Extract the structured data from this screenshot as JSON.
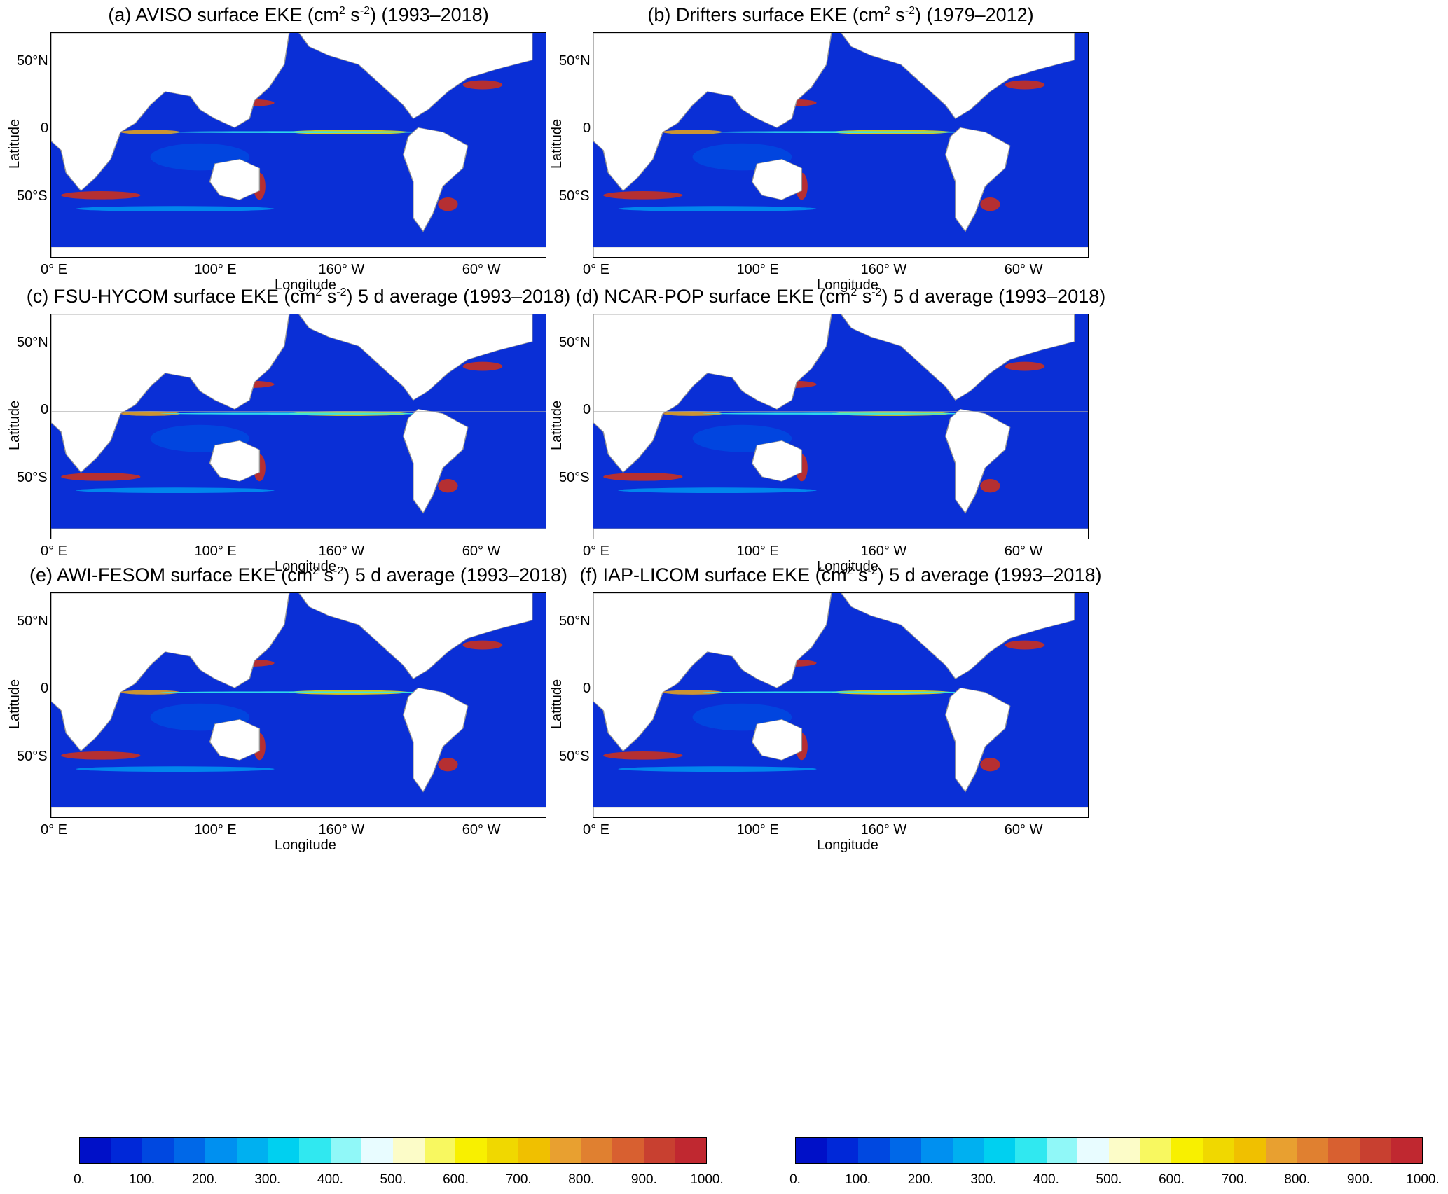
{
  "panels": [
    {
      "id": "a",
      "title_pre": "(a) AVISO surface EKE (cm",
      "title_mid": " s",
      "title_post": ") (1993–2018)"
    },
    {
      "id": "b",
      "title_pre": "(b) Drifters surface EKE (cm",
      "title_mid": " s",
      "title_post": ") (1979–2012)"
    },
    {
      "id": "c",
      "title_pre": "(c) FSU-HYCOM surface EKE (cm",
      "title_mid": " s",
      "title_post": ") 5 d average (1993–2018)"
    },
    {
      "id": "d",
      "title_pre": "(d) NCAR-POP surface EKE (cm",
      "title_mid": " s",
      "title_post": ") 5 d average (1993–2018)"
    },
    {
      "id": "e",
      "title_pre": "(e) AWI-FESOM surface EKE (cm",
      "title_mid": " s",
      "title_post": ") 5 d average (1993–2018)"
    },
    {
      "id": "f",
      "title_pre": "(f) IAP-LICOM surface EKE (cm",
      "title_mid": " s",
      "title_post": ") 5 d average (1993–2018)"
    }
  ],
  "title_sup1": "2",
  "title_sup2": "-2",
  "axes": {
    "xlabel": "Longitude",
    "ylabel": "Latitude",
    "xticks": [
      "0° E",
      "100° E",
      "160° W",
      "60° W"
    ],
    "yticks": [
      "50°N",
      "0",
      "50°S"
    ]
  },
  "colorbar": {
    "labels": [
      "0.",
      "100.",
      "200.",
      "300.",
      "400.",
      "500.",
      "600.",
      "700.",
      "800.",
      "900.",
      "1000."
    ],
    "colors": [
      "#0010c8",
      "#0028d8",
      "#0048e0",
      "#0068e8",
      "#0090f0",
      "#00b0f0",
      "#00d0f0",
      "#30e8f0",
      "#90f8f8",
      "#e8fcff",
      "#fcfcc8",
      "#f8f860",
      "#f8f000",
      "#f0d800",
      "#f0c000",
      "#e8a030",
      "#e08030",
      "#d86030",
      "#c84030",
      "#c02830"
    ]
  }
}
